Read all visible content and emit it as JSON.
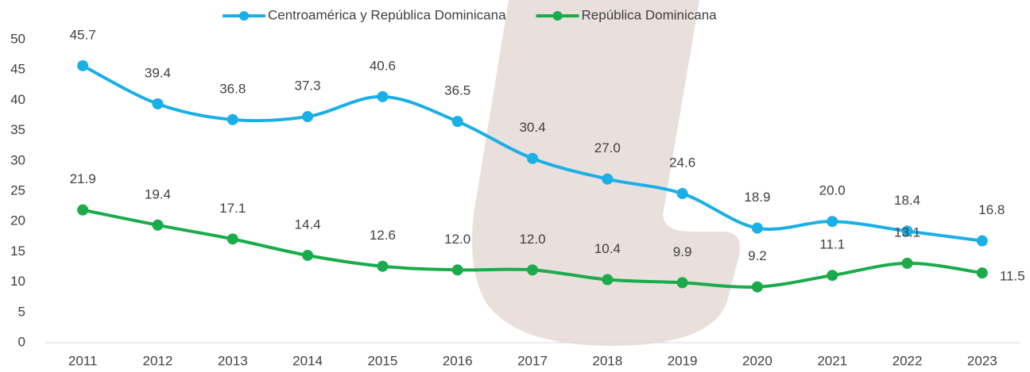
{
  "chart_data": {
    "type": "line",
    "categories": [
      "2011",
      "2012",
      "2013",
      "2014",
      "2015",
      "2016",
      "2017",
      "2018",
      "2019",
      "2020",
      "2021",
      "2022",
      "2023"
    ],
    "series": [
      {
        "name": "Centroamérica y República Dominicana",
        "color": "#1aafe6",
        "values": [
          45.7,
          39.4,
          36.8,
          37.3,
          40.6,
          36.5,
          30.4,
          27.0,
          24.6,
          18.9,
          20.0,
          18.4,
          16.8
        ],
        "value_labels": [
          "45.7",
          "39.4",
          "36.8",
          "37.3",
          "40.6",
          "36.5",
          "30.4",
          "27.0",
          "24.6",
          "18.9",
          "20.0",
          "18.4",
          "16.8"
        ]
      },
      {
        "name": "República Dominicana",
        "color": "#1aab4b",
        "values": [
          21.9,
          19.4,
          17.1,
          14.4,
          12.6,
          12.0,
          12.0,
          10.4,
          9.9,
          9.2,
          11.1,
          13.1,
          11.5
        ],
        "value_labels": [
          "21.9",
          "19.4",
          "17.1",
          "14.4",
          "12.6",
          "12.0",
          "12.0",
          "10.4",
          "9.9",
          "9.2",
          "11.1",
          "13.1",
          "11.5"
        ]
      }
    ],
    "ylim": [
      0,
      50
    ],
    "yticks": [
      0,
      5,
      10,
      15,
      20,
      25,
      30,
      35,
      40,
      45,
      50
    ],
    "grid": false,
    "legend": "top"
  }
}
